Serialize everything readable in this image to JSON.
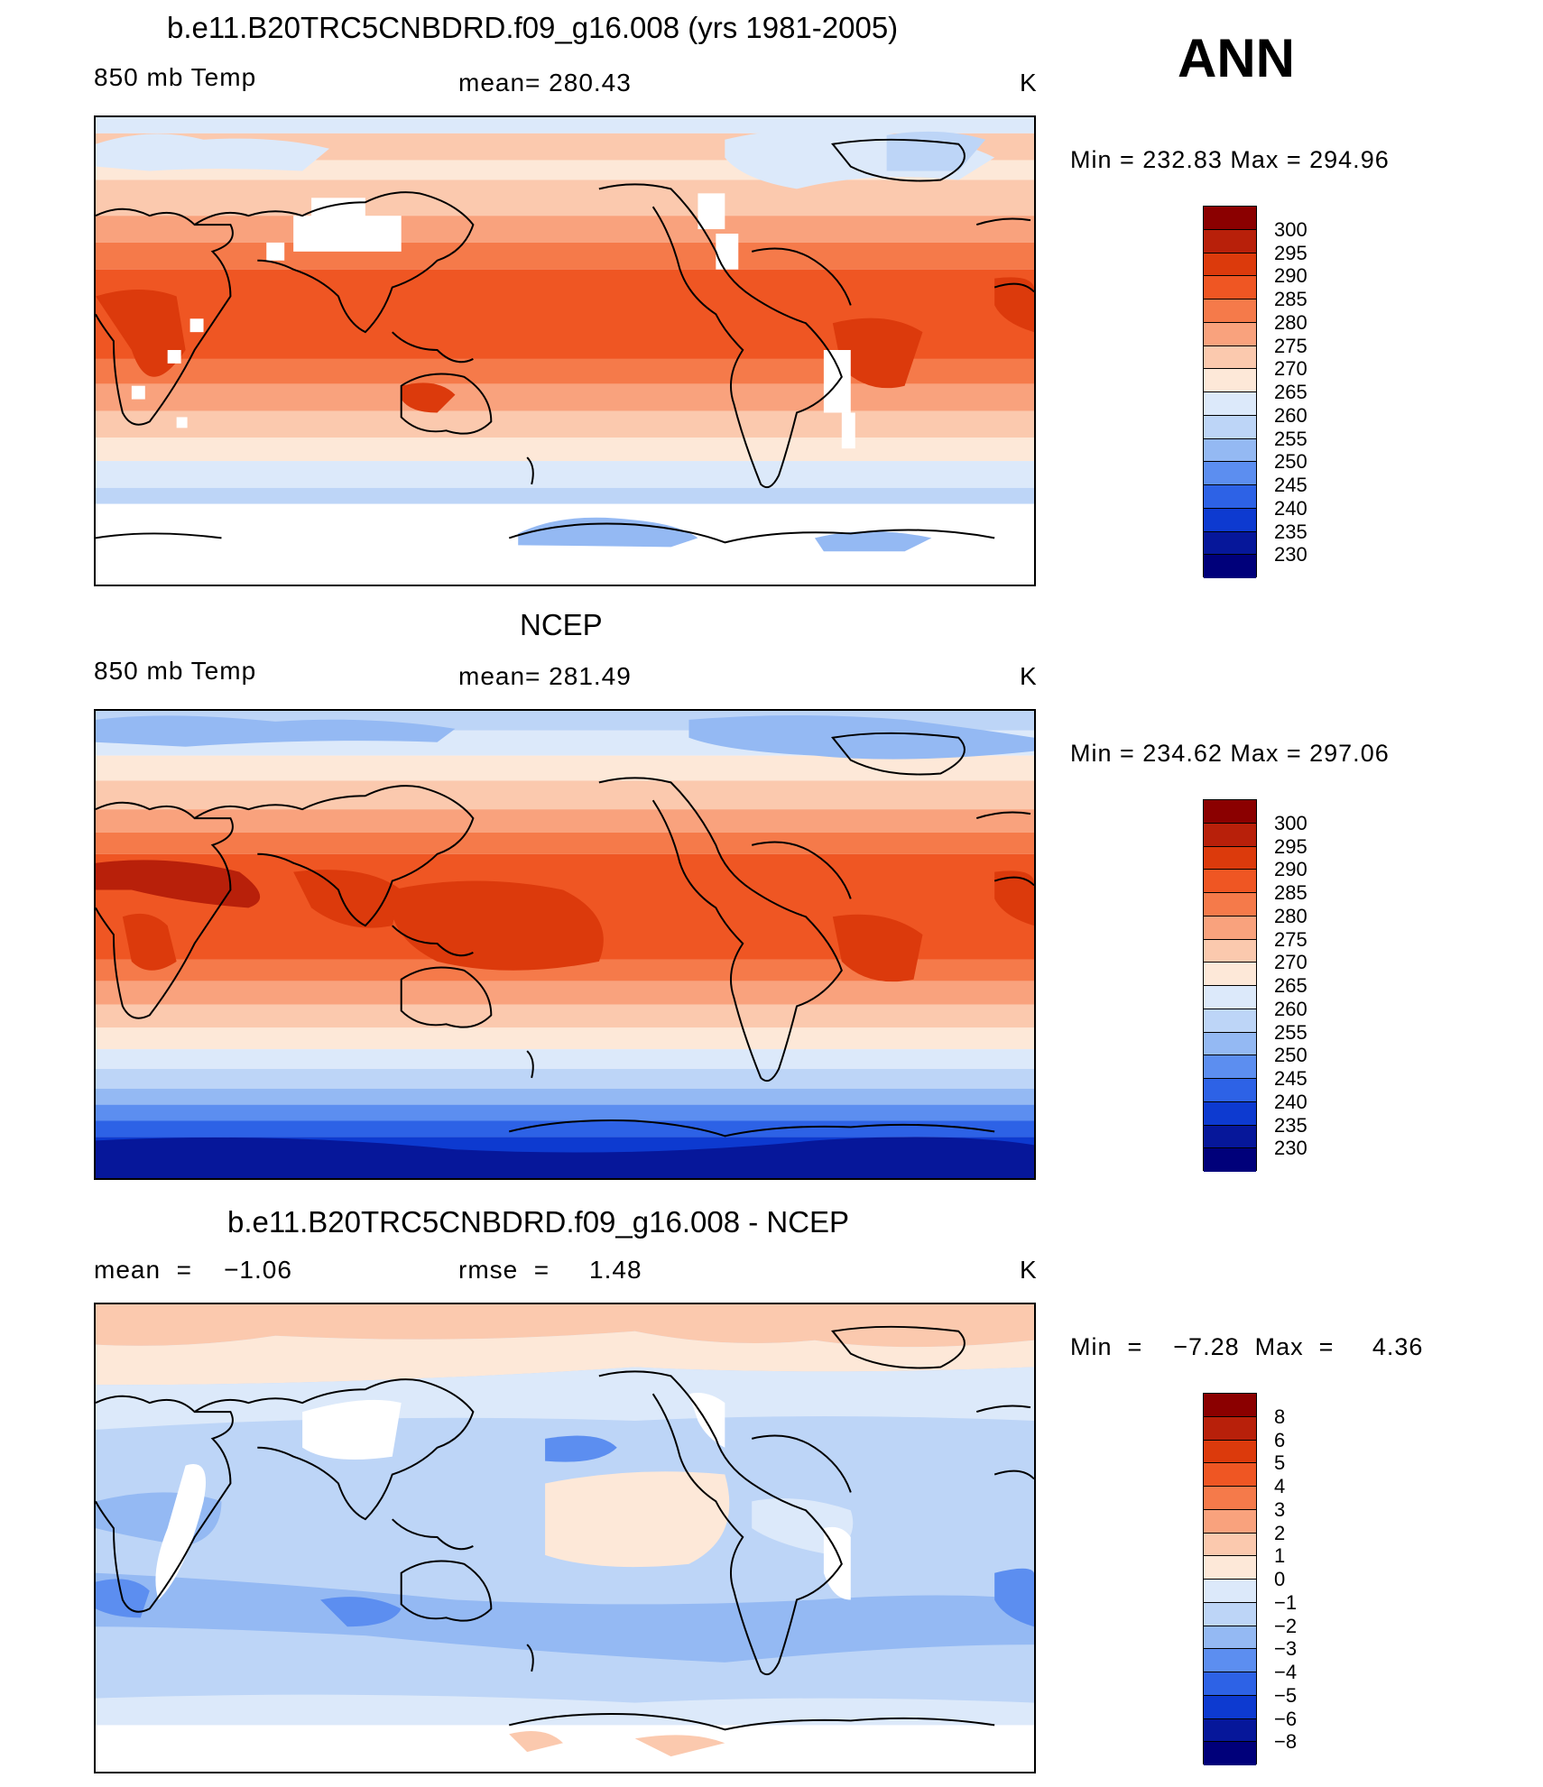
{
  "season": "ANN",
  "panels": [
    {
      "title": "b.e11.B20TRC5CNBDRD.f09_g16.008 (yrs 1981-2005)",
      "left_label": "850 mb Temp",
      "center_label": "mean=  280.43",
      "units": "K",
      "minmax": "Min  =  232.83  Max  =  294.96",
      "levels": [
        "300",
        "295",
        "290",
        "285",
        "280",
        "275",
        "270",
        "265",
        "260",
        "255",
        "250",
        "245",
        "240",
        "235",
        "230"
      ]
    },
    {
      "title": "NCEP",
      "left_label": "850 mb Temp",
      "center_label": "mean=  281.49",
      "units": "K",
      "minmax": "Min  =  234.62  Max  =  297.06",
      "levels": [
        "300",
        "295",
        "290",
        "285",
        "280",
        "275",
        "270",
        "265",
        "260",
        "255",
        "250",
        "245",
        "240",
        "235",
        "230"
      ]
    },
    {
      "title": "b.e11.B20TRC5CNBDRD.f09_g16.008 - NCEP",
      "left_label": "mean  =    −1.06",
      "center_label": "rmse  =     1.48",
      "units": "K",
      "minmax": "Min  =    −7.28  Max  =     4.36",
      "levels": [
        "8",
        "6",
        "5",
        "4",
        "3",
        "2",
        "1",
        "0",
        "−1",
        "−2",
        "−3",
        "−4",
        "−5",
        "−6",
        "−8"
      ]
    }
  ],
  "colors": {
    "abs_scale": [
      "#8b0000",
      "#b8200a",
      "#dc3a0c",
      "#ef5623",
      "#f57a4a",
      "#f9a27d",
      "#fbc9ae",
      "#fde8d8",
      "#dce9fa",
      "#bdd5f7",
      "#94b9f3",
      "#5c8ef0",
      "#2d62e6",
      "#0d3ad0",
      "#06179a",
      "#00007a"
    ],
    "diff_scale": [
      "#8b0000",
      "#b8200a",
      "#dc3a0c",
      "#ef5623",
      "#f57a4a",
      "#f9a27d",
      "#fbc9ae",
      "#fde8d8",
      "#dce9fa",
      "#bdd5f7",
      "#94b9f3",
      "#5c8ef0",
      "#2d62e6",
      "#0d3ad0",
      "#06179a",
      "#00007a"
    ]
  }
}
